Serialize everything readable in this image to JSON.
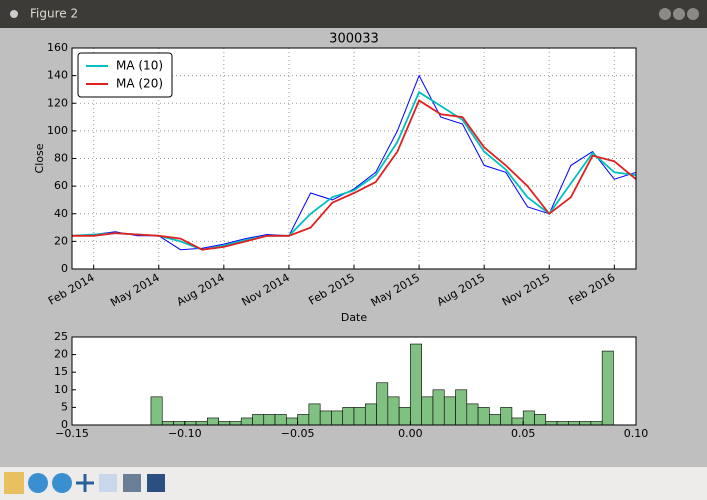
{
  "window": {
    "title": "Figure 2"
  },
  "chart_data": [
    {
      "type": "line",
      "title": "300033",
      "xlabel": "Date",
      "ylabel": "Close",
      "x": [
        "Jan 2014",
        "Feb 2014",
        "Mar 2014",
        "Apr 2014",
        "May 2014",
        "Jun 2014",
        "Jul 2014",
        "Aug 2014",
        "Sep 2014",
        "Oct 2014",
        "Nov 2014",
        "Dec 2014",
        "Jan 2015",
        "Feb 2015",
        "Mar 2015",
        "Apr 2015",
        "May 2015",
        "Jun 2015",
        "Jul 2015",
        "Aug 2015",
        "Sep 2015",
        "Oct 2015",
        "Nov 2015",
        "Dec 2015",
        "Jan 2016",
        "Feb 2016",
        "Mar 2016"
      ],
      "series": [
        {
          "color": "#0000ff",
          "values": [
            24,
            25,
            27,
            24,
            24,
            14,
            15,
            18,
            22,
            25,
            24,
            55,
            50,
            58,
            70,
            100,
            140,
            110,
            105,
            75,
            70,
            45,
            40,
            75,
            85,
            65,
            70
          ]
        },
        {
          "name": "MA (10)",
          "color": "#00bfbf",
          "values": [
            24,
            25,
            26,
            25,
            24,
            20,
            14,
            17,
            21,
            24,
            24,
            40,
            52,
            57,
            68,
            92,
            128,
            118,
            108,
            85,
            72,
            52,
            40,
            62,
            84,
            70,
            68
          ]
        },
        {
          "name": "MA (20)",
          "color": "#e02020",
          "values": [
            24,
            24,
            26,
            25,
            24,
            22,
            14,
            16,
            20,
            24,
            24,
            30,
            48,
            55,
            63,
            85,
            122,
            112,
            110,
            88,
            75,
            60,
            40,
            52,
            82,
            78,
            65
          ]
        }
      ],
      "xlim": [
        "Jan 2014",
        "Mar 2016"
      ],
      "xticks": [
        "Feb 2014",
        "May 2014",
        "Aug 2014",
        "Nov 2014",
        "Feb 2015",
        "May 2015",
        "Aug 2015",
        "Nov 2015",
        "Feb 2016"
      ],
      "ylim": [
        0,
        160
      ],
      "yticks": [
        0,
        20,
        40,
        60,
        80,
        100,
        120,
        140,
        160
      ],
      "grid": true,
      "legend": "upper left"
    },
    {
      "type": "histogram",
      "color": "#80c080",
      "bins": [
        -0.115,
        -0.11,
        -0.105,
        -0.1,
        -0.095,
        -0.09,
        -0.085,
        -0.08,
        -0.075,
        -0.07,
        -0.065,
        -0.06,
        -0.055,
        -0.05,
        -0.045,
        -0.04,
        -0.035,
        -0.03,
        -0.025,
        -0.02,
        -0.015,
        -0.01,
        -0.005,
        0,
        0.005,
        0.01,
        0.015,
        0.02,
        0.025,
        0.03,
        0.035,
        0.04,
        0.045,
        0.05,
        0.055,
        0.06,
        0.065,
        0.07,
        0.075,
        0.08,
        0.085,
        0.09
      ],
      "values": [
        8,
        1,
        1,
        1,
        1,
        2,
        1,
        1,
        2,
        3,
        3,
        3,
        2,
        3,
        6,
        4,
        4,
        5,
        5,
        6,
        12,
        8,
        5,
        23,
        8,
        10,
        8,
        10,
        6,
        5,
        3,
        5,
        2,
        4,
        3,
        1,
        1,
        1,
        1,
        1,
        21
      ],
      "xlim": [
        -0.15,
        0.1
      ],
      "xticks": [
        {
          "value": -0.15,
          "label": "−0.15"
        },
        {
          "value": -0.1,
          "label": "−0.10"
        },
        {
          "value": -0.05,
          "label": "−0.05"
        },
        {
          "value": 0,
          "label": "0.00"
        },
        0.05,
        {
          "value": 0.1,
          "label": "0.10"
        }
      ],
      "ylim": [
        0,
        25
      ],
      "yticks": [
        0,
        5,
        10,
        15,
        20,
        25
      ],
      "grid": false
    }
  ]
}
